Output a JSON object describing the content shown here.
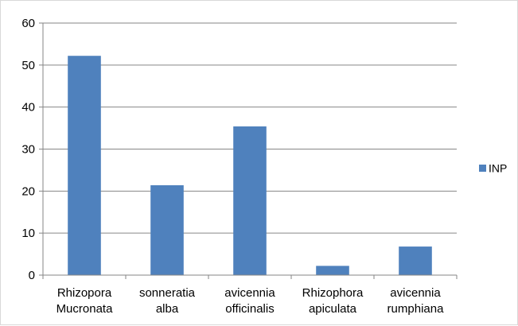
{
  "chart_data": {
    "type": "bar",
    "categories": [
      [
        "Rhizopora",
        "Mucronata"
      ],
      [
        "sonneratia",
        "alba"
      ],
      [
        "avicennia",
        "officinalis"
      ],
      [
        "Rhizophora",
        "apiculata"
      ],
      [
        "avicennia",
        "rumphiana"
      ]
    ],
    "series": [
      {
        "name": "INP",
        "values": [
          52.2,
          21.4,
          35.4,
          2.2,
          6.8
        ],
        "color": "#4f81bd"
      }
    ],
    "ylim": [
      0,
      60
    ],
    "yticks": [
      0,
      10,
      20,
      30,
      40,
      50,
      60
    ],
    "grid": true,
    "legend": "right",
    "gridColor": "#868686",
    "axisColor": "#868686"
  }
}
